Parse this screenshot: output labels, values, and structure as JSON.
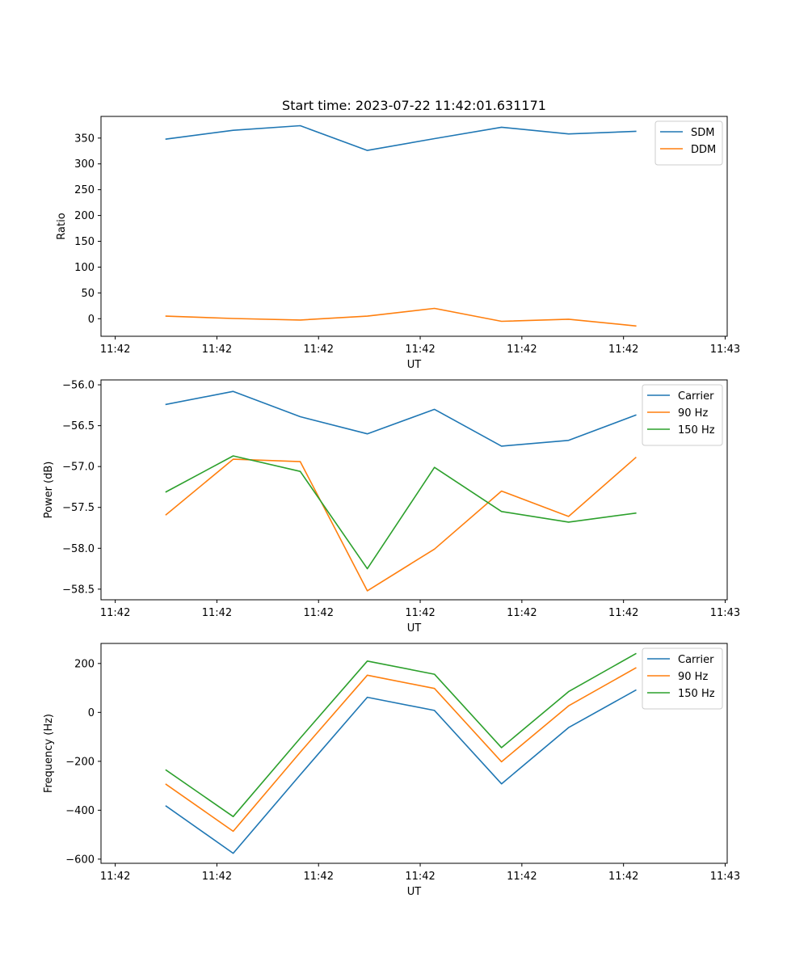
{
  "figure_title": "Start time: 2023-07-22 11:42:01.631171",
  "chart_data": [
    {
      "type": "line",
      "title": "Start time: 2023-07-22 11:42:01.631171",
      "xlabel": "UT",
      "ylabel": "Ratio",
      "x_tick_labels": [
        "11:42",
        "11:42",
        "11:42",
        "11:42",
        "11:42",
        "11:42",
        "11:43"
      ],
      "x_tick_values": [
        0,
        1,
        2,
        3,
        4,
        5,
        6
      ],
      "xlim": [
        -0.14,
        6.02
      ],
      "ylim": [
        -34,
        392
      ],
      "y_ticks": [
        0,
        50,
        100,
        150,
        200,
        250,
        300,
        350
      ],
      "y_tick_labels": [
        "0",
        "50",
        "100",
        "150",
        "200",
        "250",
        "300",
        "350"
      ],
      "legend_position": "top-right",
      "x": [
        0.5,
        1.16,
        1.82,
        2.48,
        3.14,
        3.8,
        4.46,
        5.12
      ],
      "series": [
        {
          "name": "SDM",
          "color": "#1f77b4",
          "values": [
            348,
            365,
            374,
            326,
            349,
            371,
            358,
            363
          ]
        },
        {
          "name": "DDM",
          "color": "#ff7f0e",
          "values": [
            5,
            0.5,
            -2.5,
            5,
            20,
            -5,
            -1,
            -14
          ]
        }
      ]
    },
    {
      "type": "line",
      "xlabel": "UT",
      "ylabel": "Power (dB)",
      "x_tick_labels": [
        "11:42",
        "11:42",
        "11:42",
        "11:42",
        "11:42",
        "11:42",
        "11:43"
      ],
      "x_tick_values": [
        0,
        1,
        2,
        3,
        4,
        5,
        6
      ],
      "xlim": [
        -0.14,
        6.02
      ],
      "ylim": [
        -58.63,
        -55.94
      ],
      "y_ticks": [
        -58.5,
        -58.0,
        -57.5,
        -57.0,
        -56.5,
        -56.0
      ],
      "y_tick_labels": [
        "−58.5",
        "−58.0",
        "−57.5",
        "−57.0",
        "−56.5",
        "−56.0"
      ],
      "legend_position": "top-right",
      "x": [
        0.5,
        1.16,
        1.82,
        2.48,
        3.14,
        3.8,
        4.46,
        5.12
      ],
      "series": [
        {
          "name": "Carrier",
          "color": "#1f77b4",
          "values": [
            -56.24,
            -56.08,
            -56.39,
            -56.6,
            -56.3,
            -56.75,
            -56.68,
            -56.37
          ]
        },
        {
          "name": "90 Hz",
          "color": "#ff7f0e",
          "values": [
            -57.59,
            -56.91,
            -56.94,
            -58.52,
            -58.01,
            -57.3,
            -57.61,
            -56.89
          ]
        },
        {
          "name": "150 Hz",
          "color": "#2ca02c",
          "values": [
            -57.31,
            -56.87,
            -57.06,
            -58.25,
            -57.01,
            -57.55,
            -57.68,
            -57.57
          ]
        }
      ]
    },
    {
      "type": "line",
      "xlabel": "UT",
      "ylabel": "Frequency (Hz)",
      "x_tick_labels": [
        "11:42",
        "11:42",
        "11:42",
        "11:42",
        "11:42",
        "11:42",
        "11:43"
      ],
      "x_tick_values": [
        0,
        1,
        2,
        3,
        4,
        5,
        6
      ],
      "xlim": [
        -0.14,
        6.02
      ],
      "ylim": [
        -617,
        282
      ],
      "y_ticks": [
        -600,
        -400,
        -200,
        0,
        200
      ],
      "y_tick_labels": [
        "−600",
        "−400",
        "−200",
        "0",
        "200"
      ],
      "legend_position": "top-right",
      "x": [
        0.5,
        1.16,
        1.82,
        2.48,
        3.14,
        3.8,
        4.46,
        5.12
      ],
      "series": [
        {
          "name": "Carrier",
          "color": "#1f77b4",
          "values": [
            -383,
            -576,
            -255,
            62,
            8,
            -292,
            -62,
            91
          ]
        },
        {
          "name": "90 Hz",
          "color": "#ff7f0e",
          "values": [
            -294,
            -486,
            -163,
            152,
            98,
            -202,
            27,
            182
          ]
        },
        {
          "name": "150 Hz",
          "color": "#2ca02c",
          "values": [
            -236,
            -426,
            -105,
            210,
            156,
            -144,
            85,
            240
          ]
        }
      ]
    }
  ]
}
